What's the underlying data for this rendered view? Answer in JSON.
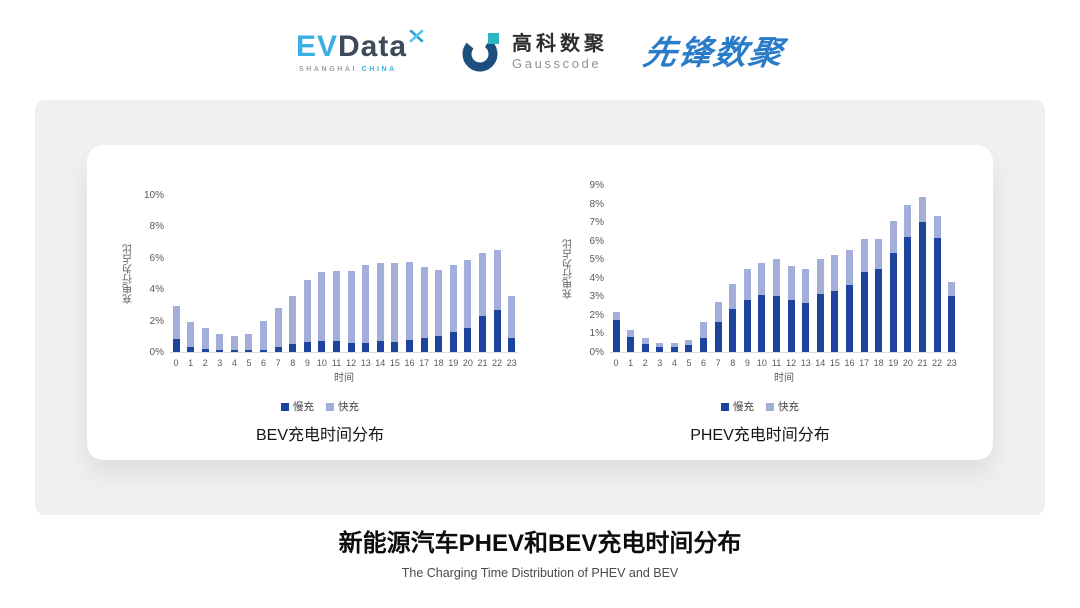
{
  "header": {
    "logos": {
      "evdata": {
        "ev": "EV",
        "data": "Data",
        "sub_left": "SHANGHAI",
        "sub_right": "CHINA"
      },
      "gausscode": {
        "cn": "高科数聚",
        "en": "Gausscode"
      },
      "xianfeng": {
        "text": "先锋数聚"
      }
    }
  },
  "footer": {
    "title": "新能源汽车PHEV和BEV充电时间分布",
    "subtitle": "The Charging Time Distribution of PHEV and BEV"
  },
  "colors": {
    "slow_charge": "#1C449C",
    "fast_charge": "#A3AEDB",
    "panel_bg": "#F0F0F0",
    "evdata_blue": "#38B0E3",
    "evdata_dark": "#3D4A5C",
    "gauss_navy": "#1C4F7E",
    "gauss_teal": "#29B7C4",
    "xianfeng_blue": "#2A7CC9"
  },
  "chart_data": [
    {
      "type": "bar",
      "stacked": true,
      "title": "BEV充电时间分布",
      "xlabel": "时间",
      "ylabel": "充电行为占比",
      "ylim": [
        0,
        10
      ],
      "ytick_step": 2,
      "ytick_format": "percent",
      "grid": false,
      "legend_position": "bottom",
      "categories": [
        "0",
        "1",
        "2",
        "3",
        "4",
        "5",
        "6",
        "7",
        "8",
        "9",
        "10",
        "11",
        "12",
        "13",
        "14",
        "15",
        "16",
        "17",
        "18",
        "19",
        "20",
        "21",
        "22",
        "23"
      ],
      "series": [
        {
          "name": "慢充",
          "color": "#1C449C",
          "values": [
            0.8,
            0.35,
            0.2,
            0.1,
            0.1,
            0.1,
            0.15,
            0.35,
            0.5,
            0.65,
            0.7,
            0.7,
            0.55,
            0.6,
            0.7,
            0.65,
            0.75,
            0.9,
            1.0,
            1.25,
            1.55,
            2.3,
            2.65,
            0.9
          ]
        },
        {
          "name": "快充",
          "color": "#A3AEDB",
          "values": [
            2.1,
            1.55,
            1.3,
            1.05,
            0.95,
            1.05,
            1.85,
            2.45,
            3.05,
            3.95,
            4.4,
            4.45,
            4.6,
            4.95,
            5.0,
            5.05,
            5.0,
            4.5,
            4.25,
            4.3,
            4.3,
            4.0,
            3.85,
            2.65
          ]
        }
      ]
    },
    {
      "type": "bar",
      "stacked": true,
      "title": "PHEV充电时间分布",
      "xlabel": "时间",
      "ylabel": "充电行为占比",
      "ylim": [
        0,
        9
      ],
      "ytick_step": 1,
      "ytick_format": "percent",
      "grid": false,
      "legend_position": "bottom",
      "categories": [
        "0",
        "1",
        "2",
        "3",
        "4",
        "5",
        "6",
        "7",
        "8",
        "9",
        "10",
        "11",
        "12",
        "13",
        "14",
        "15",
        "16",
        "17",
        "18",
        "19",
        "20",
        "21",
        "22",
        "23"
      ],
      "series": [
        {
          "name": "慢充",
          "color": "#1C449C",
          "values": [
            1.75,
            0.8,
            0.45,
            0.28,
            0.28,
            0.4,
            0.78,
            1.6,
            2.3,
            2.8,
            3.05,
            3.0,
            2.8,
            2.65,
            3.1,
            3.3,
            3.6,
            4.3,
            4.5,
            5.35,
            6.2,
            7.0,
            6.15,
            3.0
          ]
        },
        {
          "name": "快充",
          "color": "#A3AEDB",
          "values": [
            0.4,
            0.4,
            0.3,
            0.22,
            0.22,
            0.25,
            0.82,
            1.1,
            1.35,
            1.7,
            1.75,
            2.0,
            1.85,
            1.8,
            1.9,
            1.95,
            1.9,
            1.8,
            1.6,
            1.7,
            1.7,
            1.35,
            1.2,
            0.8
          ]
        }
      ]
    }
  ]
}
